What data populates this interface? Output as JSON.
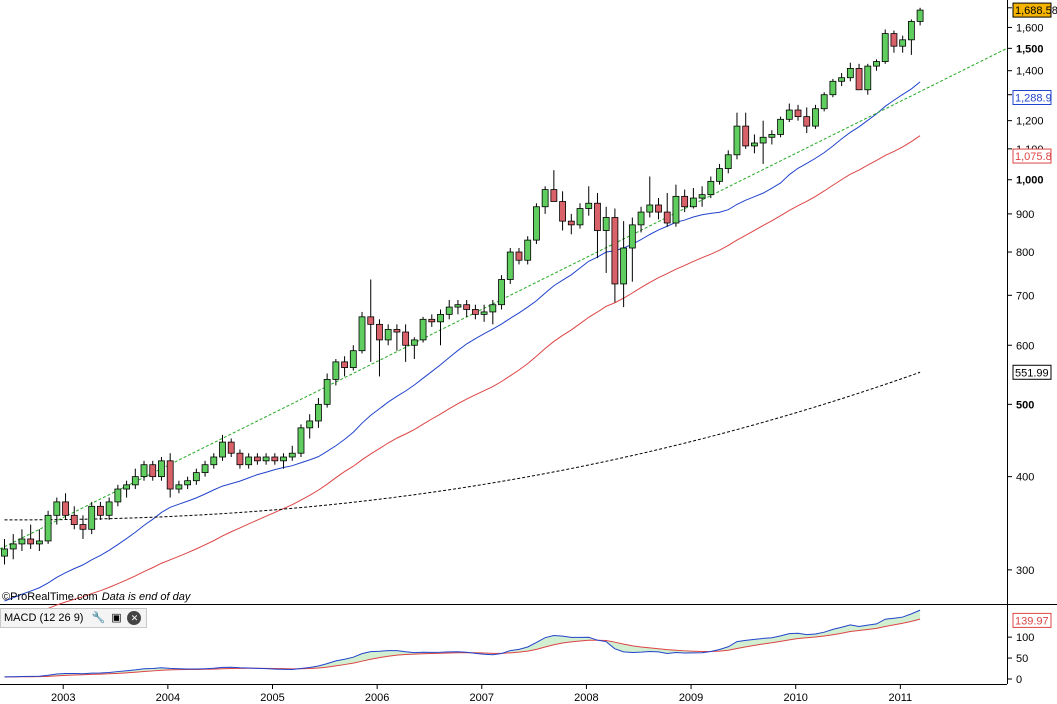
{
  "credit": {
    "site": "©ProRealTime.com",
    "note": "Data is end of day"
  },
  "macd_panel": {
    "label": "MACD (12 26 9)",
    "wrench_icon": "wrench-icon",
    "window_icon": "window-icon",
    "close_icon": "close-icon"
  },
  "chart_data": [
    {
      "type": "candlestick",
      "title": "",
      "yscale": "log",
      "ylim": [
        270,
        1720
      ],
      "y_ticks": [
        {
          "value": 300,
          "label": "300",
          "bold": false
        },
        {
          "value": 400,
          "label": "400",
          "bold": false
        },
        {
          "value": 500,
          "label": "500",
          "bold": true
        },
        {
          "value": 600,
          "label": "600",
          "bold": false
        },
        {
          "value": 700,
          "label": "700",
          "bold": false
        },
        {
          "value": 800,
          "label": "800",
          "bold": false
        },
        {
          "value": 900,
          "label": "900",
          "bold": false
        },
        {
          "value": 1000,
          "label": "1,000",
          "bold": true
        },
        {
          "value": 1100,
          "label": "1,100",
          "bold": false
        },
        {
          "value": 1200,
          "label": "1,200",
          "bold": false
        },
        {
          "value": 1300,
          "label": "1,300",
          "bold": false
        },
        {
          "value": 1400,
          "label": "1,400",
          "bold": false
        },
        {
          "value": 1500,
          "label": "1,500",
          "bold": true
        },
        {
          "value": 1600,
          "label": "1,600",
          "bold": false
        },
        {
          "value": 1700,
          "label": "1,700",
          "bold": false
        }
      ],
      "x_ticks": [
        "2003",
        "2004",
        "2005",
        "2006",
        "2007",
        "2008",
        "2009",
        "2010",
        "2011"
      ],
      "first_month": "2002-12",
      "colors": {
        "up": "#5fce5f",
        "down": "#d9626a",
        "ma_blue": "#2244cc",
        "ma_red": "#dd4444",
        "ma_black": "#000000",
        "trend": "#22aa22",
        "price_tag": "#f5b400"
      },
      "series": [
        {
          "name": "",
          "values": [
            [
              313,
              330,
              305,
              320
            ],
            [
              320,
              335,
              310,
              325
            ],
            [
              325,
              340,
              318,
              330
            ],
            [
              330,
              345,
              320,
              325
            ],
            [
              325,
              340,
              318,
              328
            ],
            [
              328,
              360,
              325,
              355
            ],
            [
              355,
              375,
              345,
              370
            ],
            [
              370,
              380,
              350,
              355
            ],
            [
              355,
              365,
              340,
              345
            ],
            [
              345,
              355,
              330,
              340
            ],
            [
              340,
              370,
              335,
              365
            ],
            [
              365,
              370,
              350,
              355
            ],
            [
              355,
              375,
              350,
              370
            ],
            [
              370,
              390,
              365,
              385
            ],
            [
              385,
              395,
              375,
              390
            ],
            [
              390,
              410,
              385,
              400
            ],
            [
              400,
              420,
              395,
              415
            ],
            [
              415,
              420,
              395,
              400
            ],
            [
              400,
              425,
              395,
              420
            ],
            [
              420,
              430,
              375,
              385
            ],
            [
              385,
              395,
              380,
              390
            ],
            [
              390,
              400,
              385,
              395
            ],
            [
              395,
              410,
              390,
              405
            ],
            [
              405,
              420,
              400,
              415
            ],
            [
              415,
              430,
              410,
              425
            ],
            [
              425,
              455,
              420,
              445
            ],
            [
              445,
              450,
              425,
              430
            ],
            [
              430,
              435,
              410,
              415
            ],
            [
              415,
              430,
              410,
              425
            ],
            [
              425,
              430,
              415,
              420
            ],
            [
              420,
              430,
              415,
              425
            ],
            [
              425,
              430,
              415,
              420
            ],
            [
              420,
              430,
              410,
              425
            ],
            [
              425,
              440,
              420,
              430
            ],
            [
              430,
              470,
              425,
              465
            ],
            [
              465,
              485,
              450,
              475
            ],
            [
              475,
              510,
              465,
              500
            ],
            [
              500,
              550,
              495,
              540
            ],
            [
              540,
              575,
              530,
              570
            ],
            [
              570,
              580,
              545,
              560
            ],
            [
              560,
              600,
              555,
              590
            ],
            [
              590,
              665,
              585,
              655
            ],
            [
              655,
              735,
              570,
              640
            ],
            [
              640,
              650,
              545,
              610
            ],
            [
              610,
              640,
              600,
              630
            ],
            [
              630,
              640,
              590,
              625
            ],
            [
              625,
              640,
              570,
              600
            ],
            [
              600,
              615,
              575,
              610
            ],
            [
              610,
              655,
              605,
              650
            ],
            [
              650,
              660,
              635,
              645
            ],
            [
              645,
              670,
              600,
              660
            ],
            [
              660,
              690,
              650,
              675
            ],
            [
              675,
              690,
              660,
              680
            ],
            [
              680,
              690,
              655,
              670
            ],
            [
              670,
              680,
              650,
              660
            ],
            [
              660,
              680,
              645,
              665
            ],
            [
              665,
              690,
              640,
              680
            ],
            [
              680,
              745,
              670,
              735
            ],
            [
              735,
              810,
              725,
              800
            ],
            [
              800,
              810,
              770,
              780
            ],
            [
              780,
              840,
              770,
              830
            ],
            [
              830,
              930,
              820,
              920
            ],
            [
              920,
              980,
              900,
              970
            ],
            [
              970,
              1030,
              960,
              935
            ],
            [
              935,
              965,
              855,
              880
            ],
            [
              880,
              900,
              845,
              870
            ],
            [
              870,
              930,
              860,
              915
            ],
            [
              915,
              980,
              895,
              930
            ],
            [
              930,
              960,
              785,
              855
            ],
            [
              855,
              920,
              750,
              890
            ],
            [
              890,
              915,
              685,
              725
            ],
            [
              725,
              880,
              675,
              810
            ],
            [
              810,
              890,
              730,
              870
            ],
            [
              870,
              920,
              850,
              905
            ],
            [
              905,
              1010,
              890,
              925
            ],
            [
              925,
              945,
              885,
              905
            ],
            [
              905,
              960,
              865,
              875
            ],
            [
              875,
              985,
              865,
              950
            ],
            [
              950,
              970,
              905,
              920
            ],
            [
              920,
              975,
              915,
              945
            ],
            [
              945,
              980,
              920,
              955
            ],
            [
              955,
              1010,
              945,
              995
            ],
            [
              995,
              1050,
              985,
              1035
            ],
            [
              1035,
              1095,
              1020,
              1080
            ],
            [
              1080,
              1230,
              1065,
              1180
            ],
            [
              1180,
              1230,
              1100,
              1110
            ],
            [
              1110,
              1150,
              1085,
              1120
            ],
            [
              1120,
              1200,
              1050,
              1140
            ],
            [
              1140,
              1165,
              1115,
              1150
            ],
            [
              1150,
              1215,
              1140,
              1205
            ],
            [
              1205,
              1265,
              1195,
              1240
            ],
            [
              1240,
              1260,
              1200,
              1215
            ],
            [
              1215,
              1250,
              1155,
              1180
            ],
            [
              1180,
              1260,
              1170,
              1245
            ],
            [
              1245,
              1310,
              1235,
              1300
            ],
            [
              1300,
              1365,
              1290,
              1355
            ],
            [
              1355,
              1390,
              1335,
              1370
            ],
            [
              1370,
              1435,
              1355,
              1410
            ],
            [
              1410,
              1430,
              1330,
              1320
            ],
            [
              1320,
              1430,
              1300,
              1420
            ],
            [
              1420,
              1450,
              1400,
              1440
            ],
            [
              1440,
              1590,
              1430,
              1570
            ],
            [
              1570,
              1585,
              1480,
              1510
            ],
            [
              1510,
              1560,
              1480,
              1540
            ],
            [
              1540,
              1640,
              1470,
              1630
            ],
            [
              1630,
              1700,
              1610,
              1688
            ]
          ]
        }
      ],
      "moving_averages": [
        {
          "name": "",
          "last": "1,288.9",
          "color": "#2244cc"
        },
        {
          "name": "",
          "last": "1,075.8",
          "color": "#dd4444"
        },
        {
          "name": "",
          "last": "551.99",
          "color": "#000000"
        }
      ],
      "last_price": "1,688.58"
    },
    {
      "type": "line",
      "title": "MACD (12 26 9)",
      "ylim": [
        0,
        160
      ],
      "y_ticks": [
        "100",
        "50",
        "0"
      ],
      "last_value": "139.97",
      "series": [
        {
          "name": "",
          "color": "#2244cc"
        },
        {
          "name": "",
          "color": "#dd4444"
        }
      ]
    }
  ]
}
